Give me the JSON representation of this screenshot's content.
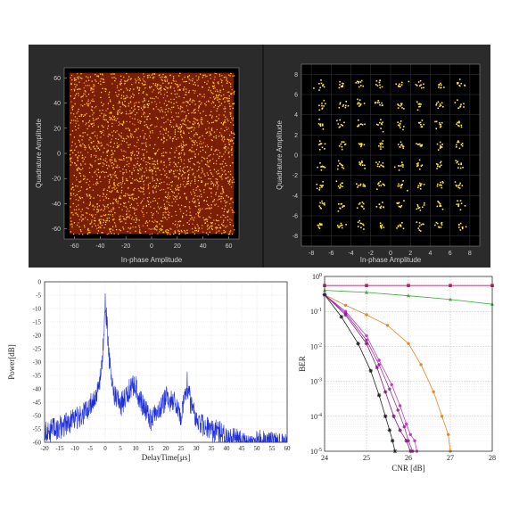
{
  "chart_data": [
    {
      "type": "scatter",
      "xlabel": "In-phase Amplitude",
      "ylabel": "Quadrature Amplitude",
      "xlim": [
        -68,
        68
      ],
      "ylim": [
        -68,
        68
      ],
      "xticks": [
        -60,
        -40,
        -20,
        0,
        20,
        40,
        60
      ],
      "yticks": [
        -60,
        -40,
        -20,
        0,
        20,
        40,
        60
      ],
      "grid": false,
      "background": "#000000",
      "fill_color": "#7a1e05",
      "point_color": "#ffd23a"
    },
    {
      "type": "scatter",
      "xlabel": "In-phase Amplitude",
      "ylabel": "Quadrature Amplitude",
      "xlim": [
        -9,
        9
      ],
      "ylim": [
        -9,
        9
      ],
      "xticks": [
        -8,
        -6,
        -4,
        -2,
        0,
        2,
        4,
        6,
        8
      ],
      "yticks": [
        -8,
        -6,
        -4,
        -2,
        0,
        2,
        4,
        6,
        8
      ],
      "constellation_points": [
        -7,
        -5,
        -3,
        -1,
        1,
        3,
        5,
        7
      ],
      "grid": true,
      "background": "#000000",
      "point_color": "#ffe83a"
    },
    {
      "type": "line",
      "xlabel": "DelayTime[μs]",
      "ylabel": "Power[dB]",
      "xlim": [
        -20,
        60
      ],
      "ylim": [
        -60,
        0
      ],
      "xticks": [
        -20,
        -15,
        -10,
        -5,
        0,
        5,
        10,
        15,
        20,
        25,
        30,
        35,
        40,
        45,
        50,
        55,
        60
      ],
      "yticks": [
        0,
        -5,
        -10,
        -15,
        -20,
        -25,
        -30,
        -35,
        -40,
        -45,
        -50,
        -55,
        -60
      ],
      "grid": true,
      "color": "#1f2fd8",
      "envelope": {
        "x": [
          -20,
          -15,
          -10,
          -7,
          -5,
          -3,
          -2,
          -1,
          0,
          0.5,
          1,
          2,
          3,
          5,
          7,
          8,
          10,
          12,
          15,
          18,
          20,
          23,
          25,
          26,
          27,
          28,
          30,
          32,
          35,
          38,
          40,
          45,
          50,
          55,
          60
        ],
        "y": [
          -52,
          -50,
          -47,
          -45,
          -42,
          -38,
          -34,
          -28,
          -2,
          -10,
          -20,
          -32,
          -38,
          -42,
          -38,
          -36,
          -34,
          -41,
          -47,
          -44,
          -39,
          -41,
          -45,
          -40,
          -33,
          -40,
          -46,
          -49,
          -51,
          -52,
          -54,
          -55,
          -55,
          -56,
          -57
        ]
      }
    },
    {
      "type": "line",
      "xlabel": "CNR [dB]",
      "ylabel": "BER",
      "xlim": [
        24,
        28
      ],
      "ylim": [
        1e-05,
        1
      ],
      "yscale": "log",
      "xticks": [
        24,
        25,
        26,
        27,
        28
      ],
      "yticks_exp": [
        0,
        -1,
        -2,
        -3,
        -4,
        -5
      ],
      "grid": true,
      "series": [
        {
          "color": "#b0206a",
          "marker": "square",
          "x": [
            24,
            25,
            26,
            27,
            28
          ],
          "y": [
            0.55,
            0.55,
            0.55,
            0.55,
            0.55
          ]
        },
        {
          "color": "#3aa83a",
          "marker": "triangle",
          "x": [
            24,
            25,
            26,
            27,
            28
          ],
          "y": [
            0.4,
            0.35,
            0.28,
            0.22,
            0.16
          ]
        },
        {
          "color": "#e08a2a",
          "marker": "circle",
          "x": [
            24,
            24.5,
            25,
            25.5,
            26,
            26.3,
            26.6,
            26.8,
            26.95,
            27.0
          ],
          "y": [
            0.3,
            0.15,
            0.08,
            0.04,
            0.012,
            0.003,
            0.0005,
            0.0001,
            3e-05,
            1e-05
          ]
        },
        {
          "color": "#c040c0",
          "marker": "circle",
          "x": [
            24,
            24.5,
            25,
            25.3,
            25.6,
            25.8,
            25.95,
            26.05,
            26.15,
            26.2
          ],
          "y": [
            0.3,
            0.1,
            0.02,
            0.004,
            0.0008,
            0.0002,
            6e-05,
            3e-05,
            2e-05,
            1e-05
          ]
        },
        {
          "color": "#a030a0",
          "marker": "circle",
          "x": [
            24,
            24.5,
            25,
            25.3,
            25.55,
            25.75,
            25.9,
            26.0,
            26.1
          ],
          "y": [
            0.3,
            0.09,
            0.015,
            0.003,
            0.0006,
            0.00015,
            5e-05,
            2e-05,
            1e-05
          ]
        },
        {
          "color": "#802080",
          "marker": "star",
          "x": [
            24,
            24.5,
            25,
            25.25,
            25.45,
            25.65,
            25.8,
            25.95,
            26.05
          ],
          "y": [
            0.3,
            0.08,
            0.012,
            0.0025,
            0.0005,
            0.0001,
            4e-05,
            2e-05,
            1e-05
          ]
        },
        {
          "color": "#222222",
          "marker": "star",
          "x": [
            24,
            24.4,
            24.8,
            25.1,
            25.3,
            25.45,
            25.55,
            25.62,
            25.68
          ],
          "y": [
            0.3,
            0.07,
            0.012,
            0.002,
            0.0004,
            0.0001,
            4e-05,
            2e-05,
            1e-05
          ]
        }
      ]
    }
  ]
}
